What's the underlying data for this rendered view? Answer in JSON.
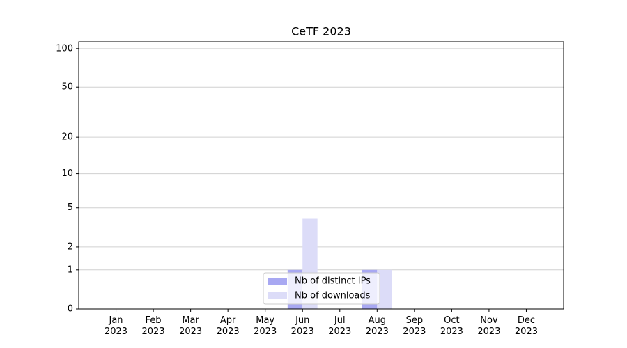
{
  "chart_data": {
    "type": "bar",
    "title": "CeTF 2023",
    "categories": [
      "Jan\n2023",
      "Feb\n2023",
      "Mar\n2023",
      "Apr\n2023",
      "May\n2023",
      "Jun\n2023",
      "Jul\n2023",
      "Aug\n2023",
      "Sep\n2023",
      "Oct\n2023",
      "Nov\n2023",
      "Dec\n2023"
    ],
    "series": [
      {
        "name": "Nb of distinct IPs",
        "color": "#a8a8f2",
        "values": [
          0,
          0,
          0,
          0,
          0,
          1,
          0,
          1,
          0,
          0,
          0,
          0
        ]
      },
      {
        "name": "Nb of downloads",
        "color": "#dcdcf8",
        "values": [
          0,
          0,
          0,
          0,
          0,
          4,
          0,
          1,
          0,
          0,
          0,
          0
        ]
      }
    ],
    "y_scale": "log1p",
    "ylim": [
      0,
      113
    ],
    "yticks": [
      0,
      1,
      2,
      5,
      10,
      20,
      50,
      100
    ],
    "grid": true,
    "legend": "lower center"
  }
}
